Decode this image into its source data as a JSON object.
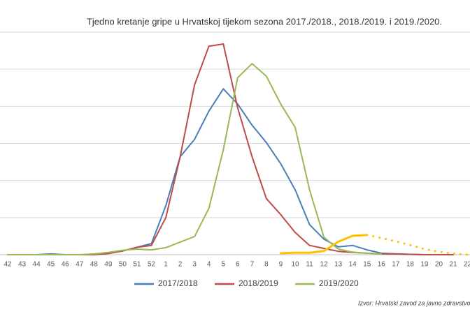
{
  "chart_data": {
    "type": "line",
    "title": "Tjedno kretanje gripe u Hrvatskoj tijekom sezona 2017./2018., 2018./2019. i 2019./2020.",
    "source": "Izvor: Hrvatski zavod za javno zdravstvo",
    "categories": [
      "42",
      "43",
      "44",
      "45",
      "46",
      "47",
      "48",
      "49",
      "50",
      "51",
      "52",
      "1",
      "2",
      "3",
      "4",
      "5",
      "6",
      "7",
      "8",
      "9",
      "10",
      "11",
      "12",
      "13",
      "14",
      "15",
      "16",
      "17",
      "18",
      "19",
      "20",
      "21",
      "22"
    ],
    "ylim": [
      0,
      6
    ],
    "yticks": [
      0,
      1,
      2,
      3,
      4,
      5,
      6
    ],
    "ytick_labels": false,
    "grid": true,
    "series": [
      {
        "name": "2017/2018",
        "color": "#4a7ebb",
        "values": [
          0,
          0,
          0,
          0.02,
          0,
          0,
          0,
          0.05,
          0.1,
          0.2,
          0.3,
          1.32,
          2.64,
          3.11,
          3.87,
          4.47,
          4.06,
          3.49,
          3.02,
          2.45,
          1.75,
          0.81,
          0.42,
          0.21,
          0.25,
          0.13,
          0.04,
          0.02,
          0.01,
          0,
          0,
          0,
          null
        ]
      },
      {
        "name": "2018/2019",
        "color": "#be4b48",
        "values": [
          0,
          0,
          0,
          0,
          0,
          0,
          0,
          0.03,
          0.1,
          0.2,
          0.25,
          1.0,
          2.64,
          4.58,
          5.62,
          5.68,
          3.96,
          2.64,
          1.51,
          1.08,
          0.6,
          0.25,
          0.17,
          0.09,
          0.06,
          0.04,
          0.02,
          0.02,
          0.01,
          0,
          0,
          0,
          null
        ]
      },
      {
        "name": "2019/2020",
        "color": "#98b954",
        "values": [
          0,
          0,
          0,
          0,
          0,
          0,
          0.02,
          0.06,
          0.12,
          0.15,
          0.13,
          0.19,
          0.34,
          0.49,
          1.25,
          2.83,
          4.77,
          5.15,
          4.81,
          4.06,
          3.43,
          1.75,
          0.47,
          0.15,
          0.07,
          0.04,
          0.02,
          null,
          null,
          null,
          null,
          null,
          null
        ]
      },
      {
        "color": "#ffc000",
        "width": 3,
        "values": [
          null,
          null,
          null,
          null,
          null,
          null,
          null,
          null,
          null,
          null,
          null,
          null,
          null,
          null,
          null,
          null,
          null,
          null,
          null,
          0.04,
          0.05,
          0.05,
          0.1,
          0.35,
          0.51,
          0.53,
          null,
          null,
          null,
          null,
          null,
          null,
          null
        ]
      },
      {
        "color": "#ffc000",
        "width": 3,
        "dotted": true,
        "values": [
          null,
          null,
          null,
          null,
          null,
          null,
          null,
          null,
          null,
          null,
          null,
          null,
          null,
          null,
          null,
          null,
          null,
          null,
          null,
          null,
          null,
          null,
          null,
          null,
          null,
          0.53,
          0.45,
          0.36,
          0.26,
          0.15,
          0.08,
          0.03,
          0
        ]
      }
    ]
  }
}
